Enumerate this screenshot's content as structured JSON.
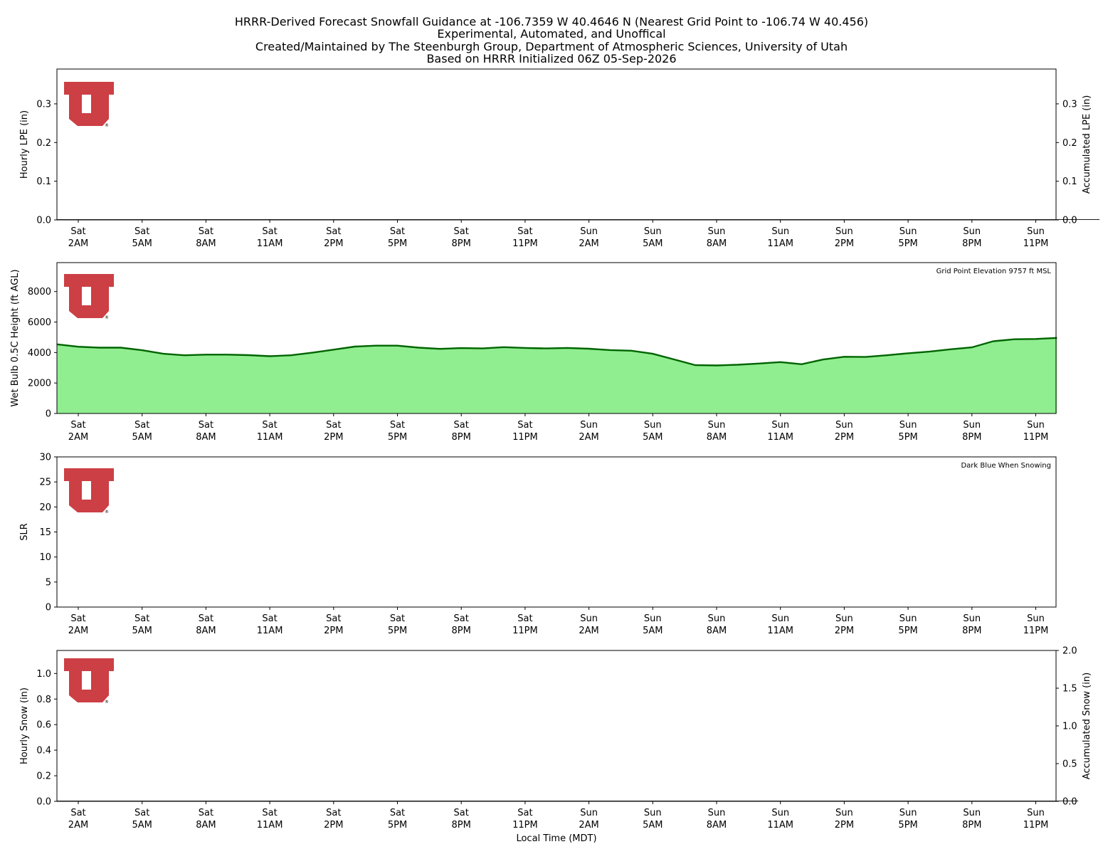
{
  "header": {
    "title_lines": [
      "HRRR-Derived Forecast Snowfall Guidance at -106.7359 W 40.4646 N (Nearest Grid Point to -106.74 W 40.456)",
      "Experimental, Automated, and Unoffical",
      "Created/Maintained by The Steenburgh Group, Department of Atmospheric Sciences, University of Utah",
      "Based on HRRR Initialized 06Z 05-Sep-2026"
    ]
  },
  "colors": {
    "logo": "#cc3f44",
    "wetbulb_fill": "#90ee90",
    "wetbulb_line": "#006400",
    "axis": "#000000"
  },
  "logo": {
    "registered_mark": "®"
  },
  "chart_data": [
    {
      "type": "bar",
      "panel": "hourly-lpe",
      "ylabel": "Hourly LPE (in)",
      "ylabel_right": "Accumulated LPE (in)",
      "ylim": [
        0,
        0.39
      ],
      "yticks": [
        "0.0",
        "0.1",
        "0.2",
        "0.3"
      ],
      "ylim_right": [
        0,
        0.39
      ],
      "yticks_right": [
        "0.0",
        "0.1",
        "0.2",
        "0.3"
      ],
      "xtick_days": [
        "Sat",
        "Sat",
        "Sat",
        "Sat",
        "Sat",
        "Sat",
        "Sat",
        "Sat",
        "Sun",
        "Sun",
        "Sun",
        "Sun",
        "Sun",
        "Sun",
        "Sun",
        "Sun"
      ],
      "xtick_times": [
        "2AM",
        "5AM",
        "8AM",
        "11AM",
        "2PM",
        "5PM",
        "8PM",
        "11PM",
        "2AM",
        "5AM",
        "8AM",
        "11AM",
        "2PM",
        "5PM",
        "8PM",
        "11PM"
      ],
      "series": [
        {
          "name": "",
          "values": [
            0,
            0,
            0,
            0,
            0,
            0,
            0,
            0,
            0,
            0,
            0,
            0,
            0,
            0,
            0,
            0,
            0,
            0,
            0,
            0,
            0,
            0,
            0,
            0,
            0,
            0,
            0,
            0,
            0,
            0,
            0,
            0,
            0,
            0,
            0,
            0,
            0,
            0,
            0,
            0,
            0,
            0,
            0,
            0,
            0,
            0,
            0,
            0,
            0
          ]
        }
      ]
    },
    {
      "type": "area",
      "panel": "wet-bulb-height",
      "ylabel": "Wet Bulb 0.5C Height (ft AGL)",
      "annotation": "Grid Point Elevation 9757 ft MSL",
      "ylim": [
        0,
        9900
      ],
      "yticks": [
        "0",
        "2000",
        "4000",
        "6000",
        "8000"
      ],
      "xtick_days": [
        "Sat",
        "Sat",
        "Sat",
        "Sat",
        "Sat",
        "Sat",
        "Sat",
        "Sat",
        "Sun",
        "Sun",
        "Sun",
        "Sun",
        "Sun",
        "Sun",
        "Sun",
        "Sun"
      ],
      "xtick_times": [
        "2AM",
        "5AM",
        "8AM",
        "11AM",
        "2PM",
        "5PM",
        "8PM",
        "11PM",
        "2AM",
        "5AM",
        "8AM",
        "11AM",
        "2PM",
        "5PM",
        "8PM",
        "11PM"
      ],
      "x_hours_from_sat_1am": [
        0,
        1,
        2,
        3,
        4,
        5,
        6,
        7,
        8,
        9,
        10,
        11,
        12,
        13,
        14,
        15,
        16,
        17,
        18,
        19,
        20,
        21,
        22,
        23,
        24,
        25,
        26,
        27,
        28,
        29,
        30,
        31,
        32,
        33,
        34,
        35,
        36,
        37,
        38,
        39,
        40,
        41,
        42,
        43,
        44,
        45,
        46,
        47
      ],
      "series": [
        {
          "name": "",
          "values": [
            4540,
            4380,
            4320,
            4320,
            4150,
            3920,
            3820,
            3860,
            3860,
            3830,
            3760,
            3820,
            3990,
            4190,
            4390,
            4450,
            4450,
            4320,
            4240,
            4290,
            4270,
            4350,
            4300,
            4270,
            4300,
            4250,
            4160,
            4120,
            3920,
            3550,
            3170,
            3150,
            3200,
            3280,
            3370,
            3230,
            3540,
            3720,
            3710,
            3820,
            3950,
            4060,
            4210,
            4340,
            4740,
            4870,
            4890,
            4960
          ]
        }
      ]
    },
    {
      "type": "bar",
      "panel": "slr",
      "ylabel": "SLR",
      "annotation": "Dark Blue When Snowing",
      "ylim": [
        0,
        30
      ],
      "yticks": [
        "0",
        "5",
        "10",
        "15",
        "20",
        "25",
        "30"
      ],
      "xtick_days": [
        "Sat",
        "Sat",
        "Sat",
        "Sat",
        "Sat",
        "Sat",
        "Sat",
        "Sat",
        "Sun",
        "Sun",
        "Sun",
        "Sun",
        "Sun",
        "Sun",
        "Sun",
        "Sun"
      ],
      "xtick_times": [
        "2AM",
        "5AM",
        "8AM",
        "11AM",
        "2PM",
        "5PM",
        "8PM",
        "11PM",
        "2AM",
        "5AM",
        "8AM",
        "11AM",
        "2PM",
        "5PM",
        "8PM",
        "11PM"
      ],
      "series": []
    },
    {
      "type": "bar",
      "panel": "hourly-snow",
      "ylabel": "Hourly Snow (in)",
      "ylabel_right": "Accumulated Snow (in)",
      "xlabel": "Local Time (MDT)",
      "ylim": [
        0,
        1.18
      ],
      "yticks": [
        "0.0",
        "0.2",
        "0.4",
        "0.6",
        "0.8",
        "1.0"
      ],
      "ylim_right": [
        0,
        2.0
      ],
      "yticks_right": [
        "0.0",
        "0.5",
        "1.0",
        "1.5",
        "2.0"
      ],
      "xtick_days": [
        "Sat",
        "Sat",
        "Sat",
        "Sat",
        "Sat",
        "Sat",
        "Sat",
        "Sat",
        "Sun",
        "Sun",
        "Sun",
        "Sun",
        "Sun",
        "Sun",
        "Sun",
        "Sun"
      ],
      "xtick_times": [
        "2AM",
        "5AM",
        "8AM",
        "11AM",
        "2PM",
        "5PM",
        "8PM",
        "11PM",
        "2AM",
        "5AM",
        "8AM",
        "11AM",
        "2PM",
        "5PM",
        "8PM",
        "11PM"
      ],
      "series": [
        {
          "name": "",
          "values": [
            0,
            0,
            0,
            0,
            0,
            0,
            0,
            0,
            0,
            0,
            0,
            0,
            0,
            0,
            0,
            0,
            0,
            0,
            0,
            0,
            0,
            0,
            0,
            0,
            0,
            0,
            0,
            0,
            0,
            0,
            0,
            0,
            0,
            0,
            0,
            0,
            0,
            0,
            0,
            0,
            0,
            0,
            0,
            0,
            0,
            0,
            0,
            0
          ]
        }
      ]
    }
  ]
}
